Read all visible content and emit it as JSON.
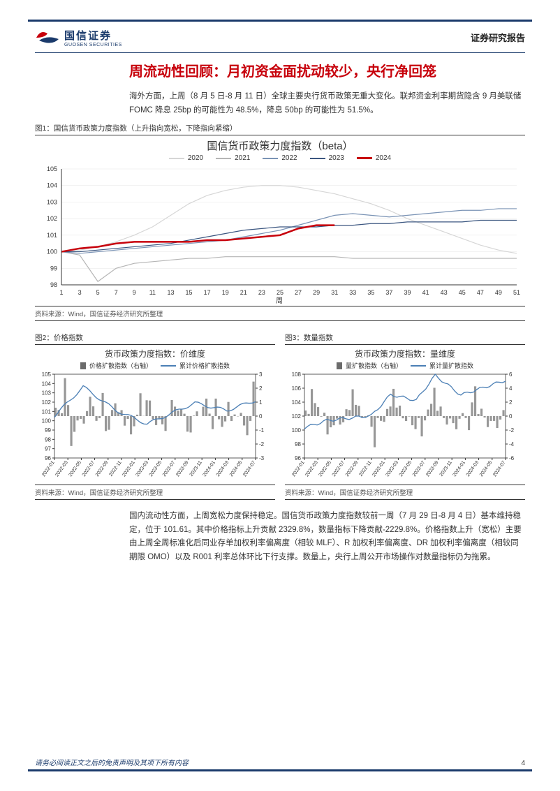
{
  "header": {
    "logo_cn": "国信证券",
    "logo_en": "GUOSEN SECURITIES",
    "report_type": "证券研究报告"
  },
  "title": "周流动性回顾：月初资金面扰动较少，央行净回笼",
  "para1": "海外方面，上周（8 月 5 日-8 月 11 日）全球主要央行货币政策无重大变化。联邦资金利率期货隐含 9 月美联储 FOMC 降息 25bp 的可能性为 48.5%，降息 50bp 的可能性为 51.5%。",
  "figure1": {
    "label": "图1：国信货币政策力度指数（上升指向宽松，下降指向紧缩）",
    "chart_title": "国信货币政策力度指数（beta）",
    "type": "line",
    "legend": [
      {
        "label": "2020",
        "color": "#d6d6d6"
      },
      {
        "label": "2021",
        "color": "#b5b5b5"
      },
      {
        "label": "2022",
        "color": "#7a93b5"
      },
      {
        "label": "2023",
        "color": "#3b5680"
      },
      {
        "label": "2024",
        "color": "#c7000b"
      }
    ],
    "x_label": "周",
    "x_ticks": [
      1,
      3,
      5,
      7,
      9,
      11,
      13,
      15,
      17,
      19,
      21,
      23,
      25,
      27,
      29,
      31,
      33,
      35,
      37,
      39,
      41,
      43,
      45,
      47,
      49,
      51
    ],
    "y_ticks": [
      98,
      99,
      100,
      101,
      102,
      103,
      104,
      105
    ],
    "ylim": [
      98,
      105
    ],
    "background_color": "#ffffff",
    "grid_color": "#e5e5e5",
    "line_width_main": 2.5,
    "line_width_other": 1.2,
    "series": {
      "2020": [
        100,
        100.1,
        100.3,
        100.6,
        101.0,
        101.5,
        102.2,
        102.9,
        103.4,
        103.7,
        103.9,
        104.0,
        104.0,
        103.9,
        103.7,
        103.5,
        103.2,
        102.9,
        102.5,
        102.0,
        101.6,
        101.2,
        100.8,
        100.4,
        100.1,
        99.9
      ],
      "2021": [
        100,
        99.8,
        98.2,
        99.0,
        99.3,
        99.4,
        99.5,
        99.6,
        99.6,
        99.7,
        99.7,
        99.7,
        99.7,
        99.7,
        99.7,
        99.7,
        99.6,
        99.6,
        99.6,
        99.6,
        99.6,
        99.6,
        99.6,
        99.6,
        99.6,
        99.6
      ],
      "2022": [
        100,
        99.9,
        100.0,
        100.1,
        100.2,
        100.3,
        100.4,
        100.5,
        100.6,
        100.7,
        100.9,
        101.1,
        101.3,
        101.6,
        101.9,
        102.2,
        102.3,
        102.2,
        102.1,
        102.2,
        102.3,
        102.4,
        102.5,
        102.5,
        102.6,
        102.6
      ],
      "2023": [
        100,
        100.0,
        100.1,
        100.2,
        100.3,
        100.4,
        100.5,
        100.7,
        100.9,
        101.1,
        101.3,
        101.4,
        101.5,
        101.5,
        101.5,
        101.6,
        101.6,
        101.7,
        101.7,
        101.8,
        101.8,
        101.8,
        101.8,
        101.9,
        101.9,
        101.9
      ],
      "2024": [
        100,
        100.2,
        100.3,
        100.5,
        100.6,
        100.6,
        100.6,
        100.6,
        100.7,
        100.7,
        100.8,
        100.9,
        101.0,
        101.4,
        101.6,
        101.6
      ]
    },
    "source": "资料来源：Wind，国信证券经济研究所整理"
  },
  "figure2": {
    "label": "图2：价格指数",
    "chart_title": "货币政策力度指数：价维度",
    "type": "line_bar_dual",
    "legend": [
      {
        "label": "价格扩散指数（右轴）",
        "style": "bar",
        "color": "#6b6b6b"
      },
      {
        "label": "累计价格扩散指数",
        "style": "line",
        "color": "#4b7fb5"
      }
    ],
    "y_left_ticks": [
      96,
      97,
      98,
      99,
      100,
      101,
      102,
      103,
      104,
      105
    ],
    "y_left_lim": [
      96,
      105
    ],
    "y_right_ticks": [
      -3,
      -2,
      -1,
      0,
      1,
      2,
      3
    ],
    "y_right_lim": [
      -3,
      3
    ],
    "x_labels": [
      "2022-01",
      "2022-03",
      "2022-05",
      "2022-07",
      "2022-09",
      "2022-11",
      "2023-01",
      "2023-03",
      "2023-05",
      "2023-07",
      "2023-09",
      "2023-11",
      "2024-01",
      "2024-03",
      "2024-05",
      "2024-07"
    ],
    "line_color": "#4b7fb5",
    "bar_color": "#6b6b6b",
    "background_color": "#ffffff",
    "source": "资料来源：Wind，国信证券经济研究所整理"
  },
  "figure3": {
    "label": "图3：数量指数",
    "chart_title": "货币政策力度指数：量维度",
    "type": "line_bar_dual",
    "legend": [
      {
        "label": "量扩散指数（右轴）",
        "style": "bar",
        "color": "#6b6b6b"
      },
      {
        "label": "累计量扩散指数",
        "style": "line",
        "color": "#4b7fb5"
      }
    ],
    "y_left_ticks": [
      96,
      98,
      100,
      102,
      104,
      106,
      108
    ],
    "y_left_lim": [
      96,
      108
    ],
    "y_right_ticks": [
      -6,
      -4,
      -2,
      0,
      2,
      4,
      6
    ],
    "y_right_lim": [
      -6,
      6
    ],
    "x_labels": [
      "2022-01",
      "2022-03",
      "2022-05",
      "2022-07",
      "2022-09",
      "2022-11",
      "2023-01",
      "2023-03",
      "2023-05",
      "2023-07",
      "2023-09",
      "2023-11",
      "2024-01",
      "2024-03",
      "2024-05",
      "2024-07"
    ],
    "line_color": "#4b7fb5",
    "bar_color": "#6b6b6b",
    "background_color": "#ffffff",
    "source": "资料来源：Wind，国信证券经济研究所整理"
  },
  "para2": "国内流动性方面，上周宽松力度保持稳定。国信货币政策力度指数较前一周（7 月 29 日-8 月 4 日）基本维持稳定，位于 101.61。其中价格指标上升贡献 2329.8%，数量指标下降贡献-2229.8%。价格指数上升（宽松）主要由上周全周标准化后同业存单加权利率偏离度（相较 MLF）、R 加权利率偏离度、DR 加权利率偏离度（相较同期限 OMO）以及 R001 利率总体环比下行支撑。数量上，央行上周公开市场操作对数量指标仍为拖累。",
  "footer": "请务必阅读正文之后的免责声明及其项下所有内容",
  "page_number": "4",
  "logo_colors": {
    "red": "#c7000b",
    "blue": "#1a3a6b"
  }
}
